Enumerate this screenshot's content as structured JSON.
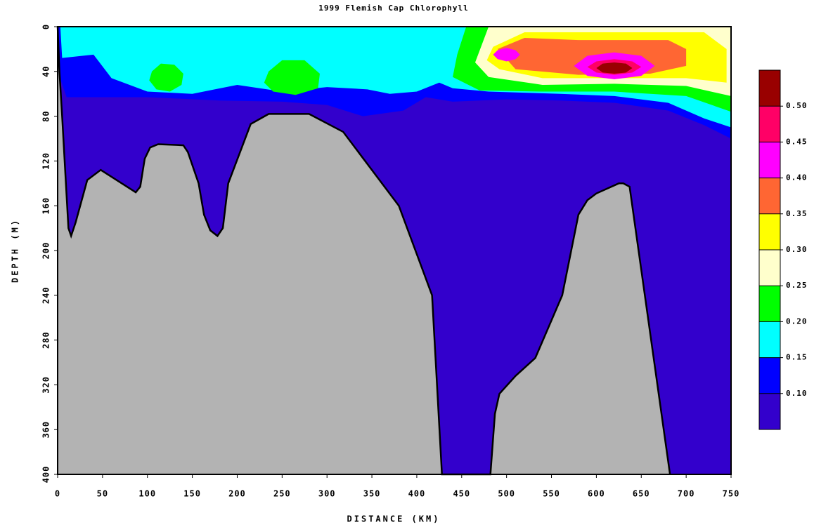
{
  "chart_data": {
    "type": "contour",
    "title": "1999 Flemish Cap Chlorophyll",
    "x_label": "DISTANCE (KM)",
    "y_label": "DEPTH (M)",
    "xlim": [
      0,
      750
    ],
    "ylim": [
      0,
      400
    ],
    "y_inverted": true,
    "xticks": [
      0,
      50,
      100,
      150,
      200,
      250,
      300,
      350,
      400,
      450,
      500,
      550,
      600,
      650,
      700,
      750
    ],
    "yticks": [
      0,
      40,
      80,
      120,
      160,
      200,
      240,
      280,
      320,
      360,
      400
    ],
    "levels": [
      {
        "value": 0.1,
        "label": "0.10"
      },
      {
        "value": 0.15,
        "label": "0.15"
      },
      {
        "value": 0.2,
        "label": "0.20"
      },
      {
        "value": 0.25,
        "label": "0.25"
      },
      {
        "value": 0.3,
        "label": "0.30"
      },
      {
        "value": 0.35,
        "label": "0.35"
      },
      {
        "value": 0.4,
        "label": "0.40"
      },
      {
        "value": 0.45,
        "label": "0.45"
      },
      {
        "value": 0.5,
        "label": "0.50"
      }
    ],
    "colors": [
      "#3300cc",
      "#0000ff",
      "#00ffff",
      "#00ff00",
      "#ffffcc",
      "#ffff00",
      "#ff6633",
      "#ff00ff",
      "#ff0066",
      "#990000"
    ],
    "contours": [
      {
        "level": 0.1,
        "points": [
          [
            0,
            0
          ],
          [
            750,
            0
          ],
          [
            750,
            100
          ],
          [
            720,
            88
          ],
          [
            680,
            75
          ],
          [
            620,
            68
          ],
          [
            560,
            66
          ],
          [
            500,
            65
          ],
          [
            440,
            67
          ],
          [
            410,
            63
          ],
          [
            385,
            75
          ],
          [
            340,
            80
          ],
          [
            300,
            70
          ],
          [
            250,
            67
          ],
          [
            180,
            66
          ],
          [
            100,
            63
          ],
          [
            10,
            63
          ],
          [
            0,
            40
          ]
        ]
      },
      {
        "level": 0.15,
        "points": [
          [
            3,
            0
          ],
          [
            750,
            0
          ],
          [
            750,
            90
          ],
          [
            720,
            82
          ],
          [
            680,
            68
          ],
          [
            620,
            62
          ],
          [
            560,
            60
          ],
          [
            480,
            58
          ],
          [
            440,
            55
          ],
          [
            425,
            50
          ],
          [
            400,
            58
          ],
          [
            370,
            60
          ],
          [
            345,
            56
          ],
          [
            300,
            54
          ],
          [
            250,
            58
          ],
          [
            200,
            52
          ],
          [
            150,
            60
          ],
          [
            100,
            58
          ],
          [
            60,
            46
          ],
          [
            40,
            25
          ],
          [
            5,
            28
          ]
        ]
      },
      {
        "level": 0.2,
        "points": [
          [
            105,
            40
          ],
          [
            115,
            33
          ],
          [
            130,
            34
          ],
          [
            140,
            42
          ],
          [
            138,
            52
          ],
          [
            125,
            58
          ],
          [
            110,
            56
          ],
          [
            102,
            48
          ]
        ]
      },
      {
        "level": 0.2,
        "points": [
          [
            235,
            40
          ],
          [
            250,
            30
          ],
          [
            275,
            30
          ],
          [
            292,
            42
          ],
          [
            290,
            55
          ],
          [
            265,
            61
          ],
          [
            240,
            58
          ],
          [
            230,
            50
          ]
        ]
      },
      {
        "level": 0.2,
        "points": [
          [
            455,
            0
          ],
          [
            750,
            0
          ],
          [
            750,
            76
          ],
          [
            700,
            62
          ],
          [
            620,
            58
          ],
          [
            540,
            58
          ],
          [
            470,
            57
          ],
          [
            440,
            45
          ],
          [
            445,
            25
          ]
        ]
      },
      {
        "level": 0.25,
        "points": [
          [
            480,
            0
          ],
          [
            750,
            0
          ],
          [
            750,
            62
          ],
          [
            700,
            53
          ],
          [
            620,
            51
          ],
          [
            540,
            52
          ],
          [
            480,
            45
          ],
          [
            465,
            32
          ]
        ]
      },
      {
        "level": 0.3,
        "points": [
          [
            485,
            18
          ],
          [
            520,
            5
          ],
          [
            720,
            5
          ],
          [
            745,
            20
          ],
          [
            745,
            50
          ],
          [
            700,
            46
          ],
          [
            620,
            46
          ],
          [
            540,
            46
          ],
          [
            492,
            38
          ],
          [
            478,
            30
          ]
        ]
      },
      {
        "level": 0.35,
        "points": [
          [
            490,
            20
          ],
          [
            520,
            10
          ],
          [
            580,
            12
          ],
          [
            680,
            12
          ],
          [
            700,
            20
          ],
          [
            700,
            35
          ],
          [
            660,
            42
          ],
          [
            580,
            43
          ],
          [
            510,
            38
          ]
        ]
      },
      {
        "level": 0.4,
        "points": [
          [
            485,
            25
          ],
          [
            490,
            21
          ],
          [
            500,
            19
          ],
          [
            510,
            21
          ],
          [
            515,
            25
          ],
          [
            510,
            29
          ],
          [
            500,
            31
          ],
          [
            490,
            29
          ]
        ]
      },
      {
        "level": 0.4,
        "points": [
          [
            575,
            35
          ],
          [
            590,
            26
          ],
          [
            620,
            23
          ],
          [
            650,
            26
          ],
          [
            665,
            35
          ],
          [
            650,
            44
          ],
          [
            620,
            47
          ],
          [
            590,
            44
          ]
        ]
      },
      {
        "level": 0.45,
        "points": [
          [
            590,
            36
          ],
          [
            600,
            31
          ],
          [
            620,
            29
          ],
          [
            640,
            31
          ],
          [
            650,
            36
          ],
          [
            640,
            41
          ],
          [
            620,
            43
          ],
          [
            600,
            41
          ]
        ]
      },
      {
        "level": 0.5,
        "points": [
          [
            600,
            37
          ],
          [
            607,
            33
          ],
          [
            620,
            32
          ],
          [
            633,
            33
          ],
          [
            640,
            37
          ],
          [
            633,
            41
          ],
          [
            620,
            42
          ],
          [
            607,
            41
          ]
        ]
      }
    ],
    "bathymetry": {
      "x": [
        0,
        2,
        5,
        12,
        15,
        20,
        33,
        48,
        87,
        92,
        97,
        103,
        112,
        140,
        145,
        157,
        163,
        170,
        178,
        184,
        190,
        215,
        235,
        280,
        318,
        380,
        417,
        428,
        482,
        487,
        492,
        510,
        532,
        562,
        580,
        590,
        600,
        625,
        630,
        637,
        682
      ],
      "depth": [
        0,
        40,
        80,
        180,
        187,
        175,
        137,
        128,
        148,
        143,
        118,
        108,
        105,
        106,
        112,
        140,
        168,
        182,
        187,
        180,
        140,
        87,
        78,
        78,
        94,
        160,
        240,
        400,
        400,
        346,
        328,
        312,
        296,
        240,
        168,
        155,
        149,
        140,
        140,
        143,
        400
      ],
      "color": "#b3b3b3"
    }
  }
}
